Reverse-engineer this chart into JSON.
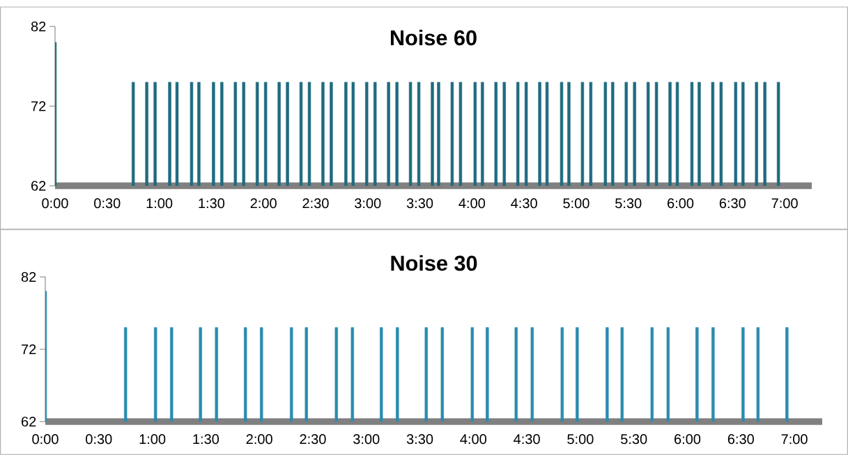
{
  "chart_data": [
    {
      "type": "bar",
      "title": "Noise 60",
      "x": [
        0,
        0.75,
        0.88,
        0.96,
        1.1,
        1.17,
        1.31,
        1.38,
        1.52,
        1.6,
        1.73,
        1.81,
        1.94,
        2.02,
        2.15,
        2.23,
        2.36,
        2.44,
        2.57,
        2.65,
        2.79,
        2.86,
        2.99,
        3.07,
        3.2,
        3.28,
        3.41,
        3.49,
        3.62,
        3.68,
        3.81,
        3.89,
        4.03,
        4.1,
        4.23,
        4.31,
        4.44,
        4.52,
        4.65,
        4.72,
        4.86,
        4.93,
        5.06,
        5.14,
        5.28,
        5.35,
        5.48,
        5.56,
        5.69,
        5.77,
        5.9,
        5.97,
        6.11,
        6.18,
        6.31,
        6.39,
        6.53,
        6.6,
        6.73,
        6.81,
        6.94
      ],
      "series": [
        {
          "color": "#1f6b80",
          "values": [
            80,
            75,
            75,
            75,
            75,
            75,
            75,
            75,
            75,
            75,
            75,
            75,
            75,
            75,
            75,
            75,
            75,
            75,
            75,
            75,
            75,
            75,
            75,
            75,
            75,
            75,
            75,
            75,
            75,
            75,
            75,
            75,
            75,
            75,
            75,
            75,
            75,
            75,
            75,
            75,
            75,
            75,
            75,
            75,
            75,
            75,
            75,
            75,
            75,
            75,
            75,
            75,
            75,
            75,
            75,
            75,
            75,
            75,
            75,
            75,
            75
          ]
        }
      ],
      "xlim": [
        0,
        7.26
      ],
      "ylim": [
        62,
        82
      ],
      "yticks": [
        62,
        72,
        82
      ],
      "xticks": [
        {
          "value": 0,
          "label": "0:00"
        },
        {
          "value": 0.5,
          "label": "0:30"
        },
        {
          "value": 1,
          "label": "1:00"
        },
        {
          "value": 1.5,
          "label": "1:30"
        },
        {
          "value": 2,
          "label": "2:00"
        },
        {
          "value": 2.5,
          "label": "2:30"
        },
        {
          "value": 3,
          "label": "3:00"
        },
        {
          "value": 3.5,
          "label": "3:30"
        },
        {
          "value": 4,
          "label": "4:00"
        },
        {
          "value": 4.5,
          "label": "4:30"
        },
        {
          "value": 5,
          "label": "5:00"
        },
        {
          "value": 5.5,
          "label": "5:30"
        },
        {
          "value": 6,
          "label": "6:00"
        },
        {
          "value": 6.5,
          "label": "6:30"
        },
        {
          "value": 7,
          "label": "7:00"
        }
      ]
    },
    {
      "type": "bar",
      "title": "Noise 30",
      "x": [
        0,
        0.75,
        1.03,
        1.18,
        1.45,
        1.6,
        1.87,
        2.02,
        2.3,
        2.44,
        2.72,
        2.87,
        3.14,
        3.29,
        3.56,
        3.71,
        3.99,
        4.13,
        4.4,
        4.55,
        4.83,
        4.97,
        5.25,
        5.39,
        5.67,
        5.82,
        6.09,
        6.24,
        6.52,
        6.66,
        6.93
      ],
      "series": [
        {
          "color": "#2b8cb0",
          "values": [
            80,
            75,
            75,
            75,
            75,
            75,
            75,
            75,
            75,
            75,
            75,
            75,
            75,
            75,
            75,
            75,
            75,
            75,
            75,
            75,
            75,
            75,
            75,
            75,
            75,
            75,
            75,
            75,
            75,
            75,
            75
          ]
        }
      ],
      "xlim": [
        0,
        7.26
      ],
      "ylim": [
        62,
        82
      ],
      "yticks": [
        62,
        72,
        82
      ],
      "xticks": [
        {
          "value": 0,
          "label": "0:00"
        },
        {
          "value": 0.5,
          "label": "0:30"
        },
        {
          "value": 1,
          "label": "1:00"
        },
        {
          "value": 1.5,
          "label": "1:30"
        },
        {
          "value": 2,
          "label": "2:00"
        },
        {
          "value": 2.5,
          "label": "2:30"
        },
        {
          "value": 3,
          "label": "3:00"
        },
        {
          "value": 3.5,
          "label": "3:30"
        },
        {
          "value": 4,
          "label": "4:00"
        },
        {
          "value": 4.5,
          "label": "4:30"
        },
        {
          "value": 5,
          "label": "5:00"
        },
        {
          "value": 5.5,
          "label": "5:30"
        },
        {
          "value": 6,
          "label": "6:00"
        },
        {
          "value": 6.5,
          "label": "6:30"
        },
        {
          "value": 7,
          "label": "7:00"
        }
      ]
    }
  ]
}
